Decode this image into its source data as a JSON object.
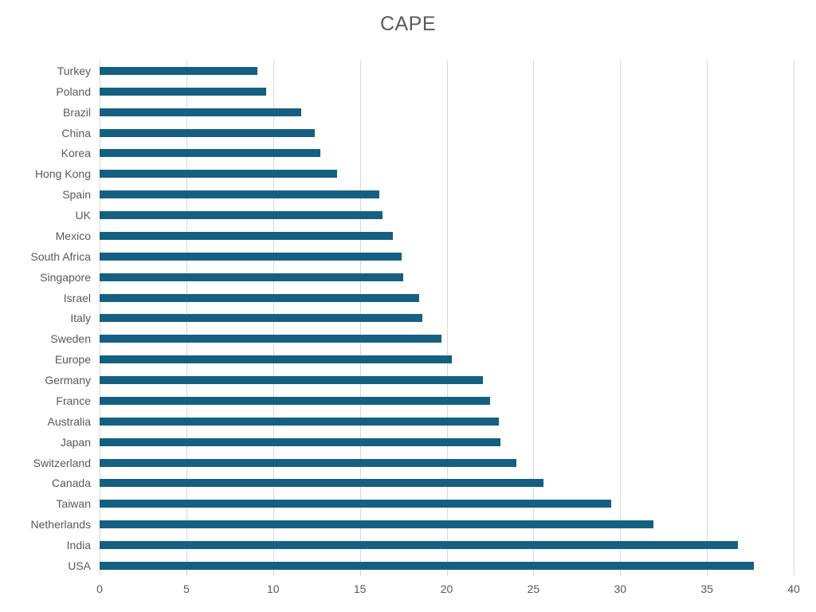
{
  "title": "CAPE",
  "colors": {
    "bar": "#156082",
    "gridline": "#D9D9D9",
    "axis_text": "#595959",
    "title_text": "#595959",
    "background": "#FFFFFF"
  },
  "chart_data": {
    "type": "bar",
    "orientation": "horizontal",
    "title": "CAPE",
    "categories": [
      "Turkey",
      "Poland",
      "Brazil",
      "China",
      "Korea",
      "Hong Kong",
      "Spain",
      "UK",
      "Mexico",
      "South Africa",
      "Singapore",
      "Israel",
      "Italy",
      "Sweden",
      "Europe",
      "Germany",
      "France",
      "Australia",
      "Japan",
      "Switzerland",
      "Canada",
      "Taiwan",
      "Netherlands",
      "India",
      "USA"
    ],
    "values": [
      9.1,
      9.6,
      11.6,
      12.4,
      12.7,
      13.7,
      16.1,
      16.3,
      16.9,
      17.4,
      17.5,
      18.4,
      18.6,
      19.7,
      20.3,
      22.1,
      22.5,
      23.0,
      23.1,
      24.0,
      25.6,
      29.5,
      31.9,
      36.8,
      37.7
    ],
    "xlim": [
      0,
      40
    ],
    "xticks": [
      0,
      5,
      10,
      15,
      20,
      25,
      30,
      35,
      40
    ],
    "xlabel": "",
    "ylabel": "",
    "grid": "vertical",
    "legend": "none"
  }
}
